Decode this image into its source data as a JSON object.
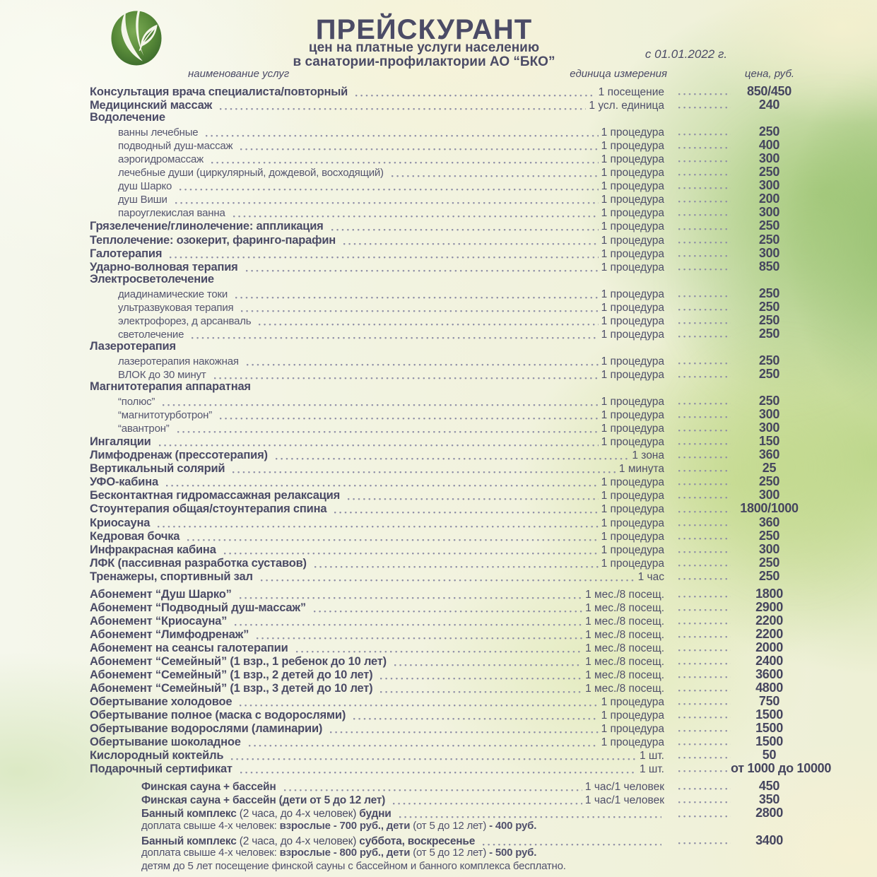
{
  "header": {
    "title": "ПРЕЙСКУРАНТ",
    "subtitle1": "цен на платные услуги населению",
    "subtitle2": "в санатории-профилактории АО “БКО”",
    "date": "с 01.01.2022 г.",
    "logo_icon": "leaf-logo"
  },
  "columns": {
    "name": "наименование услуг",
    "unit": "единица измерения",
    "price": "цена, руб."
  },
  "colors": {
    "text": "#4b4b66",
    "dots": "#8e8ea6",
    "logo_green_dark": "#38662a",
    "logo_green_light": "#7cab55",
    "background_green": "#a6ca7c",
    "background_cream": "#f3f2de"
  },
  "table": {
    "rows": [
      {
        "v": "h",
        "n": "Консультация врача специалиста/повторный",
        "u": "1 посещение",
        "pr": "850/450"
      },
      {
        "v": "h",
        "n": "Медицинский массаж",
        "u": "1 усл. единица",
        "pr": "240"
      },
      {
        "v": "sec",
        "n": "Водолечение"
      },
      {
        "v": "s",
        "n": "ванны лечебные",
        "u": "1 процедура",
        "pr": "250"
      },
      {
        "v": "s",
        "n": "подводный душ-массаж",
        "u": "1 процедура",
        "pr": "400"
      },
      {
        "v": "s",
        "n": "аэрогидромассаж",
        "u": "1 процедура",
        "pr": "300"
      },
      {
        "v": "s",
        "n": "лечебные души (циркулярный, дождевой, восходящий)",
        "u": "1 процедура",
        "pr": "250"
      },
      {
        "v": "s",
        "n": "душ Шарко",
        "u": "1 процедура",
        "pr": "300"
      },
      {
        "v": "s",
        "n": "душ Виши",
        "u": "1 процедура",
        "pr": "200"
      },
      {
        "v": "s",
        "n": "пароуглекислая ванна",
        "u": "1 процедура",
        "pr": "300"
      },
      {
        "v": "h",
        "n": "Грязелечение/глинолечение: аппликация",
        "u": "1 процедура",
        "pr": "250"
      },
      {
        "v": "h",
        "n": "Теплолечение: озокерит, фаринго-парафин",
        "u": "1 процедура",
        "pr": "250"
      },
      {
        "v": "h",
        "n": "Галотерапия",
        "u": "1 процедура",
        "pr": "300"
      },
      {
        "v": "h",
        "n": "Ударно-волновая терапия",
        "u": "1 процедура",
        "pr": "850"
      },
      {
        "v": "sec",
        "n": "Электросветолечение"
      },
      {
        "v": "s",
        "n": "диадинамические токи",
        "u": "1 процедура",
        "pr": "250"
      },
      {
        "v": "s",
        "n": "ультразвуковая терапия",
        "u": "1 процедура",
        "pr": "250"
      },
      {
        "v": "s",
        "n": "электрофорез, д арсанваль",
        "u": "1 процедура",
        "pr": "250"
      },
      {
        "v": "s",
        "n": "светолечение",
        "u": "1 процедура",
        "pr": "250"
      },
      {
        "v": "sec",
        "n": "Лазеротерапия"
      },
      {
        "v": "s",
        "n": "лазеротерапия накожная",
        "u": "1 процедура",
        "pr": "250"
      },
      {
        "v": "s",
        "n": "ВЛОК до 30 минут",
        "u": "1 процедура",
        "pr": "250"
      },
      {
        "v": "sec",
        "n": "Магнитотерапия аппаратная"
      },
      {
        "v": "s",
        "n": "“полюс”",
        "u": "1 процедура",
        "pr": "250"
      },
      {
        "v": "s",
        "n": "“магнитотурботрон”",
        "u": "1 процедура",
        "pr": "300"
      },
      {
        "v": "s",
        "n": "“авантрон”",
        "u": "1 процедура",
        "pr": "300"
      },
      {
        "v": "h",
        "n": "Ингаляции",
        "u": "1 процедура",
        "pr": "150"
      },
      {
        "v": "h",
        "n": "Лимфодренаж (прессотерапия)",
        "u": "1 зона",
        "pr": "360"
      },
      {
        "v": "h",
        "n": "Вертикальный солярий",
        "u": "1 минута",
        "pr": "25"
      },
      {
        "v": "h",
        "n": "УФО-кабина",
        "u": "1 процедура",
        "pr": "250"
      },
      {
        "v": "h",
        "n": "Бесконтактная гидромассажная релаксация",
        "u": "1 процедура",
        "pr": "300"
      },
      {
        "v": "h",
        "n": "Стоунтерапия общая/стоунтерапия спина",
        "u": "1 процедура",
        "pr": "1800/1000"
      },
      {
        "v": "h",
        "n": "Криосауна",
        "u": "1 процедура",
        "pr": "360"
      },
      {
        "v": "h",
        "n": "Кедровая бочка",
        "u": "1 процедура",
        "pr": "250"
      },
      {
        "v": "h",
        "n": "Инфракрасная кабина",
        "u": "1 процедура",
        "pr": "300"
      },
      {
        "v": "h",
        "n": "ЛФК (пассивная разработка суставов)",
        "u": "1 процедура",
        "pr": "250"
      },
      {
        "v": "h",
        "n": "Тренажеры, спортивный зал",
        "u": "1 час",
        "pr": "250",
        "g": true
      },
      {
        "v": "h",
        "n": "Абонемент “Душ Шарко”",
        "u": "1 мес./8 посещ.",
        "pr": "1800"
      },
      {
        "v": "h",
        "n": "Абонемент “Подводный душ-массаж”",
        "u": "1 мес./8 посещ.",
        "pr": "2900"
      },
      {
        "v": "h",
        "n": "Абонемент “Криосауна”",
        "u": "1 мес./8 посещ.",
        "pr": "2200"
      },
      {
        "v": "h",
        "n": "Абонемент “Лимфодренаж”",
        "u": "1 мес./8 посещ.",
        "pr": "2200"
      },
      {
        "v": "h",
        "n": "Абонемент на сеансы галотерапии",
        "u": "1 мес./8 посещ.",
        "pr": "2000"
      },
      {
        "v": "h",
        "n": "Абонемент “Семейный” (1 взр., 1 ребенок до 10 лет)",
        "u": "1 мес./8 посещ.",
        "pr": "2400"
      },
      {
        "v": "h",
        "n": "Абонемент “Семейный” (1 взр., 2 детей до 10 лет)",
        "u": "1 мес./8 посещ.",
        "pr": "3600"
      },
      {
        "v": "h",
        "n": "Абонемент “Семейный” (1 взр., 3 детей до 10 лет)",
        "u": "1 мес./8 посещ.",
        "pr": "4800"
      },
      {
        "v": "h",
        "n": "Обертывание холодовое",
        "u": "1 процедура",
        "pr": "750"
      },
      {
        "v": "h",
        "n": "Обертывание полное (маска с водорослями)",
        "u": "1 процедура",
        "pr": "1500"
      },
      {
        "v": "h",
        "n": "Обертывание водорослями (ламинарии)",
        "u": "1 процедура",
        "pr": "1500"
      },
      {
        "v": "h",
        "n": "Обертывание шоколадное",
        "u": "1 процедура",
        "pr": "1500"
      },
      {
        "v": "h",
        "n": "Кислородный коктейль",
        "u": "1 шт.",
        "pr": "50"
      },
      {
        "v": "h",
        "n": "Подарочный сертификат",
        "u": "1 шт.",
        "pr": "от 1000 до 10000",
        "g": true
      },
      {
        "v": "i2",
        "n": "Финская сауна + бассейн",
        "u": "1 час/1 человек",
        "pr": "450"
      },
      {
        "v": "i2",
        "n": "Финская сауна + бассейн (дети от 5 до 12 лет)",
        "u": "1 час/1 человек",
        "pr": "350"
      },
      {
        "v": "i2",
        "p": [
          {
            "t": "Банный комплекс ",
            "b": true
          },
          {
            "t": "(2 часа, до 4-х человек) ",
            "b": false
          },
          {
            "t": "будни",
            "b": true
          }
        ],
        "pr": "2800"
      },
      {
        "v": "note",
        "p": [
          {
            "t": "доплата свыше 4-х человек: ",
            "b": false
          },
          {
            "t": "взрослые - 700 руб., дети ",
            "b": true
          },
          {
            "t": "(от 5 до 12 лет) ",
            "b": false
          },
          {
            "t": "- 400 руб.",
            "b": true
          }
        ]
      },
      {
        "v": "i2",
        "p": [
          {
            "t": "Банный комплекс ",
            "b": true
          },
          {
            "t": "(2 часа, до 4-х человек) ",
            "b": false
          },
          {
            "t": "суббота, воскресенье",
            "b": true
          }
        ],
        "pr": "3400"
      },
      {
        "v": "note",
        "p": [
          {
            "t": "доплата свыше 4-х человек: ",
            "b": false
          },
          {
            "t": "взрослые - 800 руб., дети ",
            "b": true
          },
          {
            "t": "(от 5 до 12 лет) ",
            "b": false
          },
          {
            "t": "- 500 руб.",
            "b": true
          }
        ]
      },
      {
        "v": "note",
        "p": [
          {
            "t": "детям до 5 лет посещение финской сауны с бассейном и банного комплекса бесплатно.",
            "b": false
          }
        ]
      }
    ]
  }
}
